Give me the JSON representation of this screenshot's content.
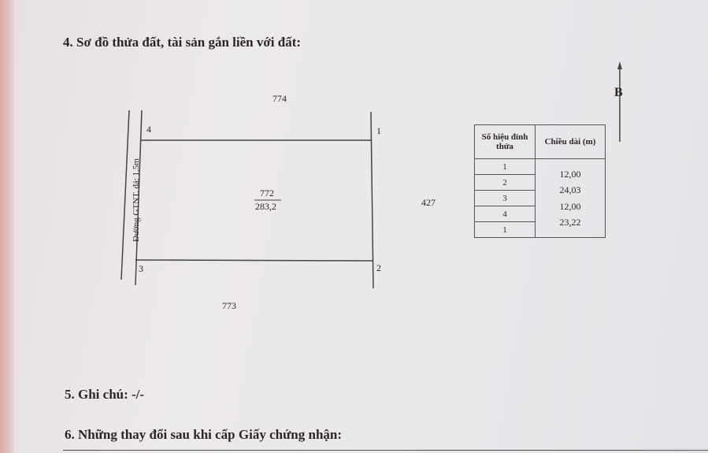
{
  "section4_heading": "4. Sơ đồ thửa đất, tài sản gắn liền với đất:",
  "diagram": {
    "neighbor_top": "774",
    "neighbor_bottom": "773",
    "neighbor_right": "427",
    "road_label": "Đường GTNT. đá: 1,5m",
    "parcel_number": "772",
    "parcel_area": "283,2",
    "corners": {
      "top_left": "4",
      "top_right": "1",
      "bottom_right": "2",
      "bottom_left": "3"
    },
    "north_label": "B"
  },
  "table": {
    "col1_header": "Số hiệu đỉnh thửa",
    "col2_header": "Chiều dài (m)",
    "vertices": [
      "1",
      "2",
      "3",
      "4",
      "1"
    ],
    "lengths": [
      "12,00",
      "24,03",
      "12,00",
      "23,22"
    ]
  },
  "section5": "5. Ghi chú: -/-",
  "section6": "6. Những thay đổi sau khi cấp Giấy chứng nhận:"
}
